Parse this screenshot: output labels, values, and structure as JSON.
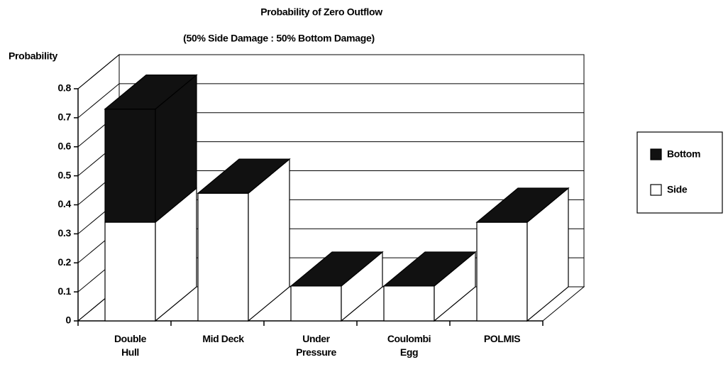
{
  "chart_data": {
    "type": "bar3d_stacked",
    "title": "Probability of Zero Outflow",
    "subtitle": "(50% Side Damage : 50% Bottom Damage)",
    "y_label": "Probability",
    "categories": [
      "Double Hull",
      "Mid Deck",
      "Under Pressure",
      "Coulombi Egg",
      "POLMIS"
    ],
    "series": [
      {
        "name": "Side",
        "color": "#ffffff",
        "values": [
          0.34,
          0.44,
          0.12,
          0.12,
          0.34
        ]
      },
      {
        "name": "Bottom",
        "color": "#111111",
        "values": [
          0.39,
          0,
          0,
          0,
          0
        ]
      }
    ],
    "ylim": [
      0,
      0.8
    ],
    "yticks": [
      0,
      0.1,
      0.2,
      0.3,
      0.4,
      0.5,
      0.6,
      0.7,
      0.8
    ],
    "grid": true,
    "legend": "right"
  }
}
